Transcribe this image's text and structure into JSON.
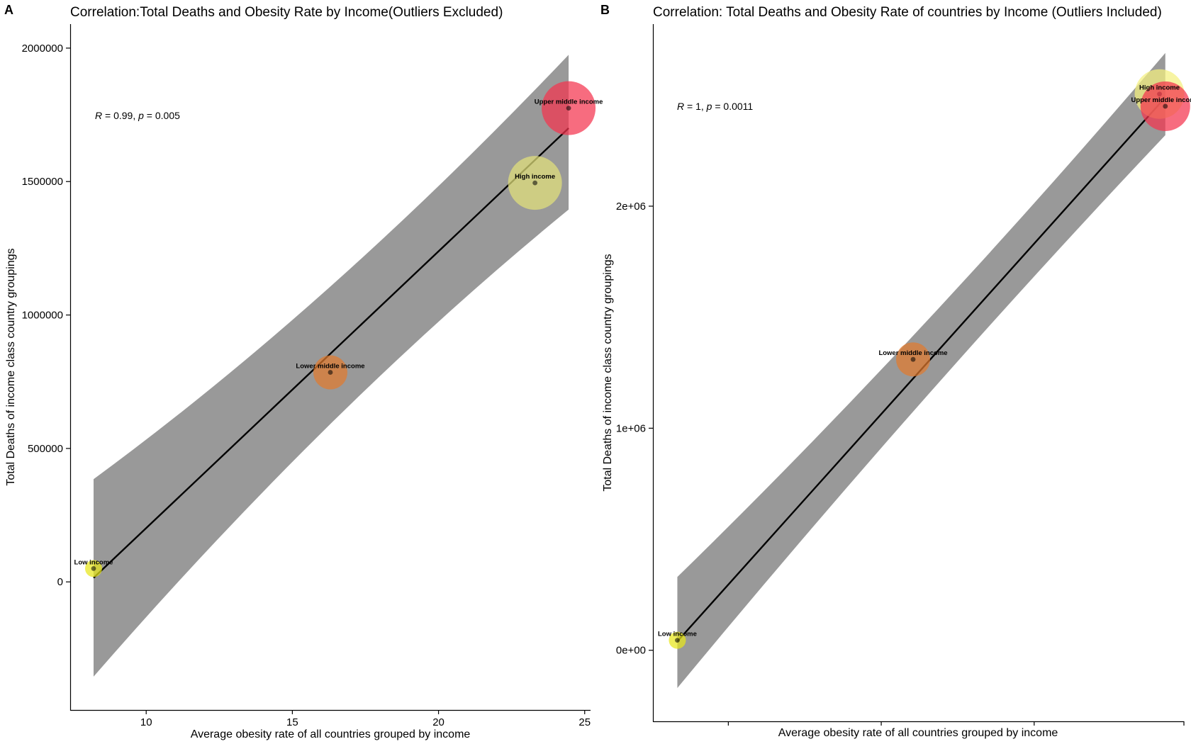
{
  "chart_data": [
    {
      "panel": "A",
      "type": "scatter",
      "title": "Correlation:Total Deaths and Obesity Rate by Income(Outliers Excluded)",
      "xlabel": "Average obesity rate of all countries grouped by income",
      "ylabel": "Total Deaths of income class country groupings",
      "xlim": [
        7.4,
        25.2
      ],
      "ylim": [
        -480000,
        2090000
      ],
      "xticks": [
        10,
        15,
        20,
        25
      ],
      "yticks": [
        0,
        500000,
        1000000,
        1500000,
        2000000
      ],
      "xtick_labels": [
        "10",
        "15",
        "20",
        "25"
      ],
      "ytick_labels": [
        "0",
        "500000",
        "1000000",
        "1500000",
        "2000000"
      ],
      "annotation": {
        "r_label": "R",
        "r_text": " = 0.99, ",
        "p_label": "p",
        "p_text": " = 0.005",
        "x": 8.2,
        "y": 1740000
      },
      "points": [
        {
          "label": "Low income",
          "x": 8.2,
          "y": 50000,
          "color": "#e8e61a",
          "size_hint": "small"
        },
        {
          "label": "Lower middle income",
          "x": 16.3,
          "y": 785000,
          "color": "#e07a2e",
          "size_hint": "medium"
        },
        {
          "label": "High income",
          "x": 23.3,
          "y": 1495000,
          "color": "#e2e07a",
          "size_hint": "large"
        },
        {
          "label": "Upper middle income",
          "x": 24.45,
          "y": 1775000,
          "color": "#f4334e",
          "size_hint": "large"
        }
      ],
      "fit_line": {
        "x_start": 8.2,
        "y_start": 15000,
        "x_end": 24.45,
        "y_end": 1700000
      },
      "confidence_band": {
        "upper": [
          [
            8.2,
            385000
          ],
          [
            24.45,
            1975000
          ]
        ],
        "lower": [
          [
            8.2,
            -355000
          ],
          [
            24.45,
            1395000
          ]
        ],
        "band_color": "#999999"
      },
      "grid": false
    },
    {
      "panel": "B",
      "type": "scatter",
      "title": "Correlation: Total Deaths and Obesity Rate of countries by Income (Outliers Included)",
      "xlabel": "Average obesity rate of all countries grouped by income",
      "ylabel": "Total Deaths of income class country groupings",
      "xlim": [
        0,
        100
      ],
      "ylim": [
        -320000,
        2820000
      ],
      "xticks_unlabeled": true,
      "yticks": [
        0,
        1000000,
        2000000
      ],
      "ytick_labels": [
        "0e+00",
        "1e+06",
        "2e+06"
      ],
      "annotation": {
        "r_label": "R",
        "r_text": " = 1, ",
        "p_label": "p",
        "p_text": " = 0.0011",
        "x": 4.6,
        "y": 2470000
      },
      "points": [
        {
          "label": "Low income",
          "x": 4.6,
          "y": 45000,
          "color": "#e8e61a",
          "size_hint": "small"
        },
        {
          "label": "Lower middle income",
          "x": 49.0,
          "y": 1310000,
          "color": "#e07a2e",
          "size_hint": "medium"
        },
        {
          "label": "High income",
          "x": 95.4,
          "y": 2505000,
          "color": "#f4f07e",
          "size_hint": "large"
        },
        {
          "label": "Upper middle income",
          "x": 96.5,
          "y": 2450000,
          "color": "#f4334e",
          "size_hint": "large"
        }
      ],
      "fit_line": {
        "x_start": 4.6,
        "y_start": 40000,
        "x_end": 96.5,
        "y_end": 2490000
      },
      "confidence_band": {
        "upper": [
          [
            4.6,
            330000
          ],
          [
            96.5,
            2690000
          ]
        ],
        "lower": [
          [
            4.6,
            -170000
          ],
          [
            96.5,
            2320000
          ]
        ],
        "band_color": "#999999"
      },
      "grid": false
    }
  ]
}
